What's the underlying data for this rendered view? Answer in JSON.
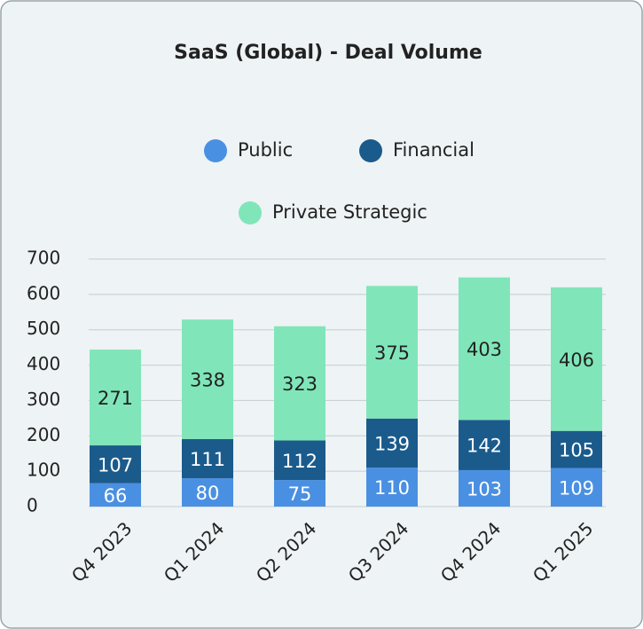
{
  "chart_data": {
    "type": "stacked_bar",
    "title": "SaaS (Global) - Deal Volume",
    "categories": [
      "Q4 2023",
      "Q1 2024",
      "Q2 2024",
      "Q3 2024",
      "Q4 2024",
      "Q1 2025"
    ],
    "series": [
      {
        "name": "Public",
        "color": "#4a90e2",
        "values": [
          66,
          80,
          75,
          110,
          103,
          109
        ]
      },
      {
        "name": "Financial",
        "color": "#1b5b8c",
        "values": [
          107,
          111,
          112,
          139,
          142,
          105
        ]
      },
      {
        "name": "Private Strategic",
        "color": "#80e6b9",
        "values": [
          271,
          338,
          323,
          375,
          403,
          406
        ]
      }
    ],
    "ylim": [
      0,
      700
    ],
    "yticks": [
      0,
      100,
      200,
      300,
      400,
      500,
      600,
      700
    ],
    "grid": true
  }
}
